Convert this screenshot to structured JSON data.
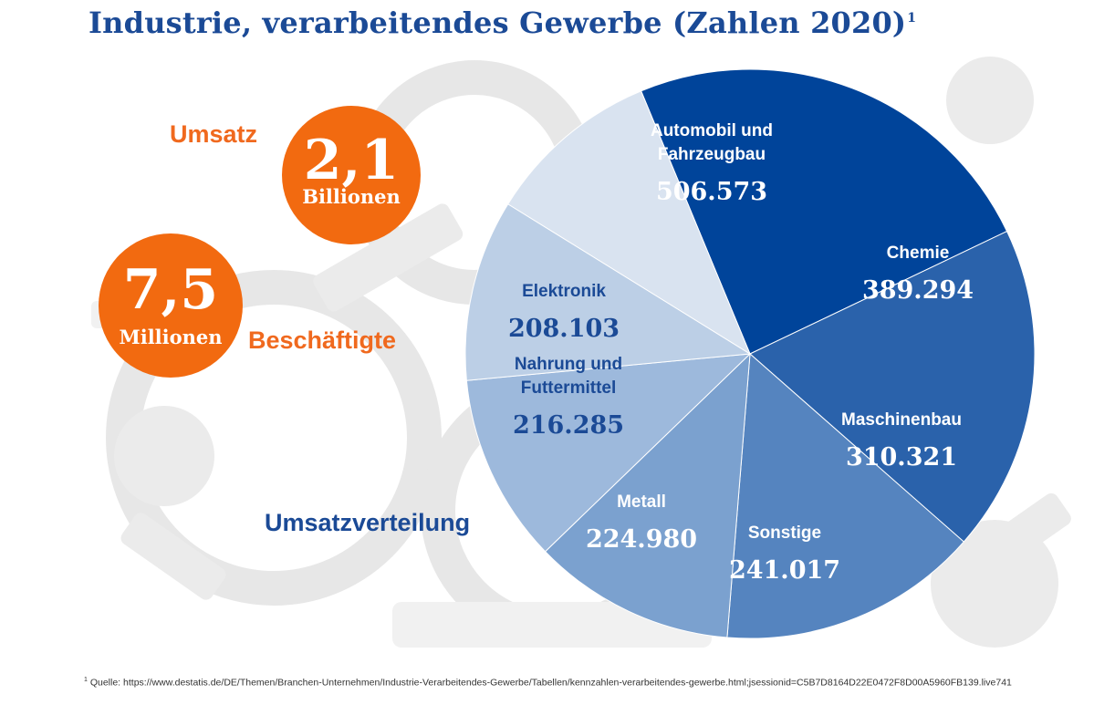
{
  "title": "Industrie, verarbeitendes Gewerbe (Zahlen 2020)",
  "title_footnote_mark": "1",
  "kpis": {
    "umsatz": {
      "label": "Umsatz",
      "value": "2,1",
      "unit": "Billionen"
    },
    "beschaeftigte": {
      "label": "Beschäftigte",
      "value": "7,5",
      "unit": "Millionen"
    }
  },
  "section_label": "Umsatzverteilung",
  "footnote": {
    "mark": "1",
    "text": "Quelle: https://www.destatis.de/DE/Themen/Branchen-Unternehmen/Industrie-Verarbeitendes-Gewerbe/Tabellen/kennzahlen-verarbeitendes-gewerbe.html;jsessionid=C5B7D8164D22E0472F8D00A5960FB139.live741"
  },
  "colors": {
    "title_blue": "#1b4a96",
    "orange": "#f26a10",
    "slice_colors": [
      "#00449a",
      "#2a62ab",
      "#5584bf",
      "#7ba1cf",
      "#9db9dc",
      "#bccfe6",
      "#d9e3f0"
    ],
    "light_text": "#ffffff",
    "dark_text": "#1b4a96"
  },
  "chart_data": {
    "type": "pie",
    "title": "Umsatzverteilung",
    "slices": [
      {
        "label": "Automobil und Fahrzeugbau",
        "value": 506.573,
        "value_label": "506.573"
      },
      {
        "label": "Chemie",
        "value": 389.294,
        "value_label": "389.294"
      },
      {
        "label": "Maschinenbau",
        "value": 310.321,
        "value_label": "310.321"
      },
      {
        "label": "Sonstige",
        "value": 241.017,
        "value_label": "241.017"
      },
      {
        "label": "Metall",
        "value": 224.98,
        "value_label": "224.980"
      },
      {
        "label": "Nahrung und Futtermittel",
        "value": 216.285,
        "value_label": "216.285"
      },
      {
        "label": "Elektronik",
        "value": 208.103,
        "value_label": "208.103"
      }
    ]
  }
}
